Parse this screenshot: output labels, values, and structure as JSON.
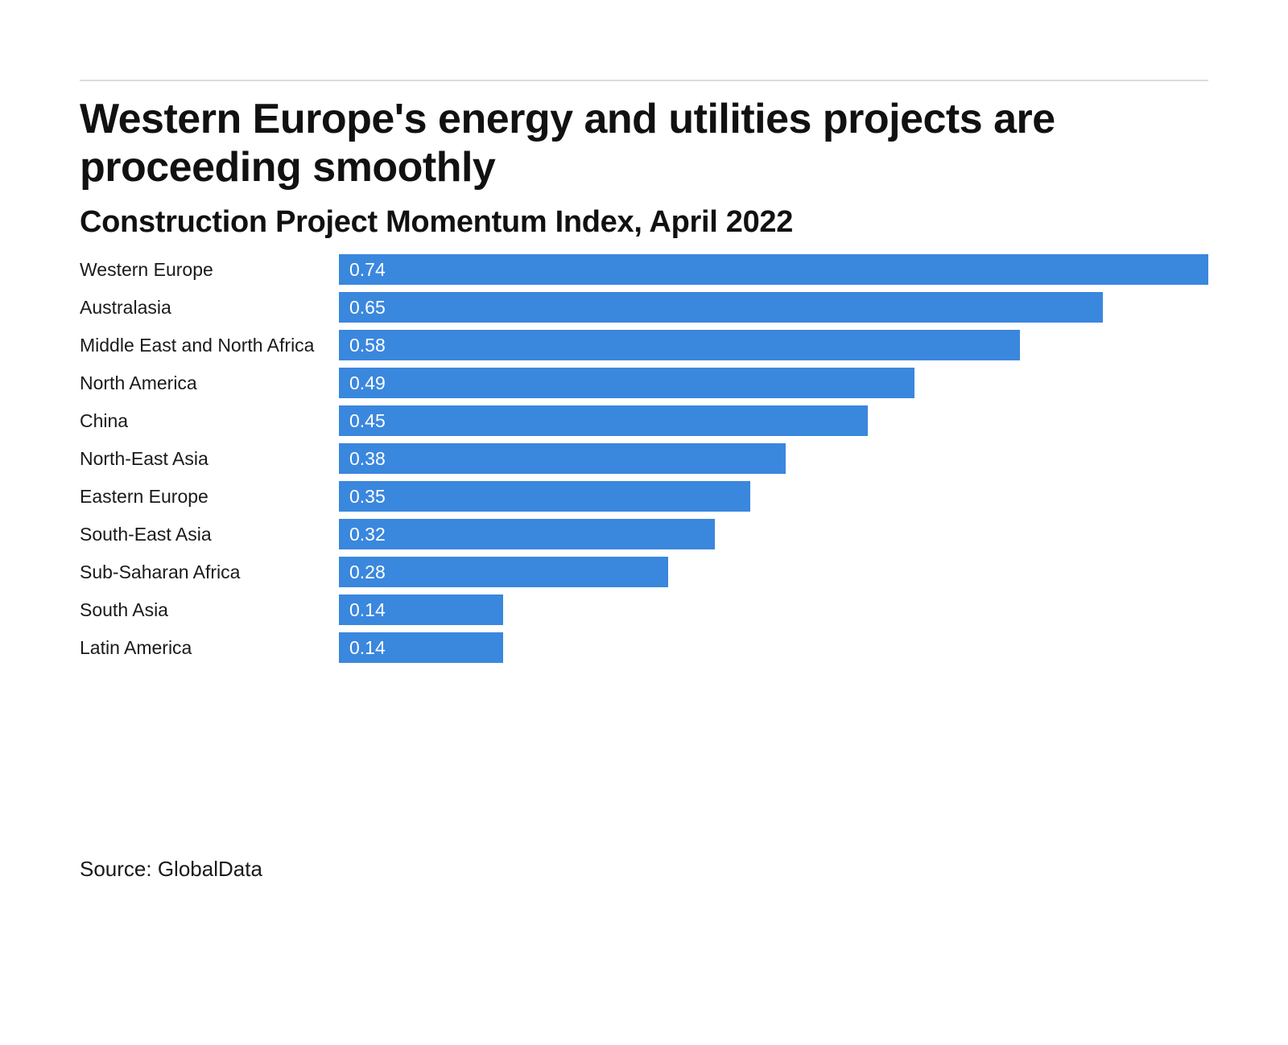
{
  "header": {
    "title_lines": [
      "Western Europe's energy and utilities projects are",
      "proceeding smoothly"
    ],
    "subtitle": "Construction Project Momentum Index, April 2022"
  },
  "chart_data": {
    "type": "bar",
    "orientation": "horizontal",
    "title": "Western Europe's energy and utilities projects are proceeding smoothly",
    "subtitle": "Construction Project Momentum Index, April 2022",
    "categories": [
      "Western Europe",
      "Australasia",
      "Middle East and North Africa",
      "North America",
      "China",
      "North-East Asia",
      "Eastern Europe",
      "South-East Asia",
      "Sub-Saharan Africa",
      "South Asia",
      "Latin America"
    ],
    "values": [
      0.74,
      0.65,
      0.58,
      0.49,
      0.45,
      0.38,
      0.35,
      0.32,
      0.28,
      0.14,
      0.14
    ],
    "value_labels": [
      "0.74",
      "0.65",
      "0.58",
      "0.49",
      "0.45",
      "0.38",
      "0.35",
      "0.32",
      "0.28",
      "0.14",
      "0.14"
    ],
    "xlim": [
      0,
      0.74
    ],
    "grid": false,
    "legend": "none",
    "value_labels_inside": true,
    "bar_color": "#3a87de",
    "value_label_color": "#ffffff",
    "label_color": "#1a1a1a"
  },
  "footer": {
    "source": "Source: GlobalData"
  }
}
